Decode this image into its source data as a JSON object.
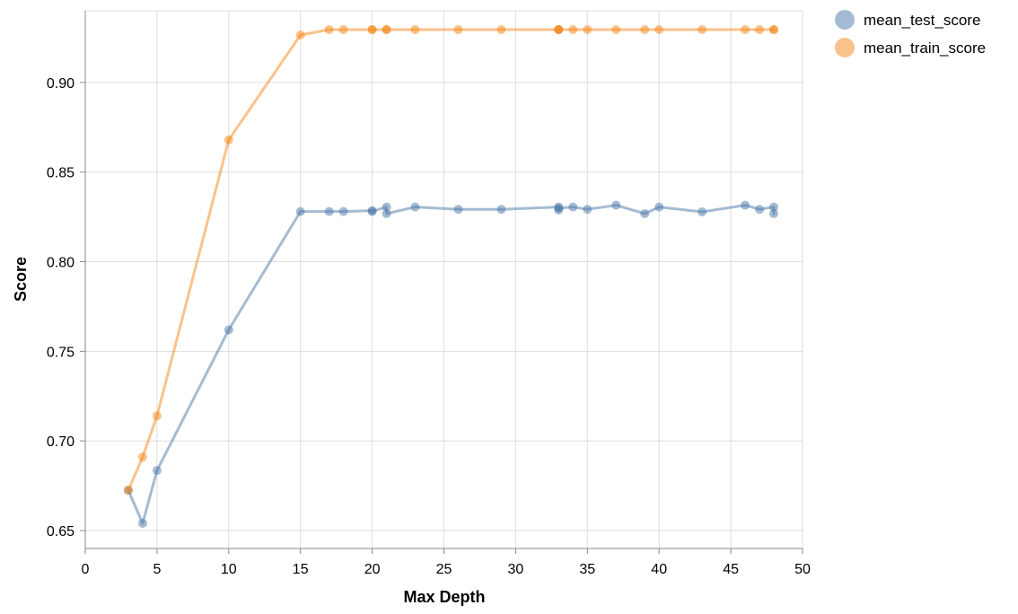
{
  "chart_data": {
    "type": "line",
    "xlabel": "Max Depth",
    "ylabel": "Score",
    "xlim": [
      0,
      50
    ],
    "ylim": [
      0.64,
      0.94
    ],
    "x_ticks": [
      0,
      5,
      10,
      15,
      20,
      25,
      30,
      35,
      40,
      45,
      50
    ],
    "y_ticks": [
      0.65,
      0.7,
      0.75,
      0.8,
      0.85,
      0.9
    ],
    "grid": true,
    "legend_position": "top-right",
    "series": [
      {
        "name": "mean_test_score",
        "color": "#4c78a8",
        "points": [
          [
            3,
            0.6725
          ],
          [
            4,
            0.654
          ],
          [
            5,
            0.6835
          ],
          [
            10,
            0.762
          ],
          [
            15,
            0.828
          ],
          [
            17,
            0.828
          ],
          [
            18,
            0.828
          ],
          [
            20,
            0.8285
          ],
          [
            20,
            0.828
          ],
          [
            21,
            0.8305
          ],
          [
            21,
            0.8268
          ],
          [
            23,
            0.8305
          ],
          [
            26,
            0.8292
          ],
          [
            29,
            0.8292
          ],
          [
            33,
            0.8305
          ],
          [
            33,
            0.8288
          ],
          [
            33,
            0.8298
          ],
          [
            34,
            0.8305
          ],
          [
            35,
            0.8292
          ],
          [
            37,
            0.8315
          ],
          [
            39,
            0.8268
          ],
          [
            40,
            0.8305
          ],
          [
            43,
            0.8278
          ],
          [
            46,
            0.8315
          ],
          [
            47,
            0.8292
          ],
          [
            48,
            0.8305
          ],
          [
            48,
            0.8268
          ]
        ]
      },
      {
        "name": "mean_train_score",
        "color": "#f58518",
        "points": [
          [
            3,
            0.6725
          ],
          [
            4,
            0.691
          ],
          [
            5,
            0.714
          ],
          [
            10,
            0.868
          ],
          [
            15,
            0.9265
          ],
          [
            17,
            0.9295
          ],
          [
            18,
            0.9295
          ],
          [
            20,
            0.9295
          ],
          [
            20,
            0.9295
          ],
          [
            21,
            0.9295
          ],
          [
            21,
            0.9295
          ],
          [
            23,
            0.9295
          ],
          [
            26,
            0.9295
          ],
          [
            29,
            0.9295
          ],
          [
            33,
            0.9295
          ],
          [
            33,
            0.9295
          ],
          [
            33,
            0.9295
          ],
          [
            34,
            0.9295
          ],
          [
            35,
            0.9295
          ],
          [
            37,
            0.9295
          ],
          [
            39,
            0.9295
          ],
          [
            40,
            0.9295
          ],
          [
            43,
            0.9295
          ],
          [
            46,
            0.9295
          ],
          [
            47,
            0.9295
          ],
          [
            48,
            0.9295
          ],
          [
            48,
            0.9295
          ]
        ]
      }
    ]
  }
}
